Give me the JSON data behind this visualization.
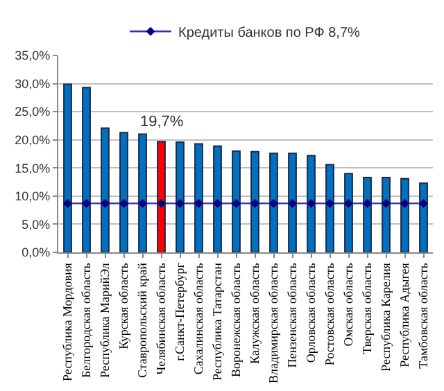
{
  "chart_data": {
    "type": "bar",
    "categories": [
      "Республика Мордовия",
      "Белгородская область",
      "Республика МарийЭл",
      "Курская область",
      "Ставропольский край",
      "Челябинская область",
      "г.Санкт-Петербург",
      "Сахалинская область",
      "Республика Татарстан",
      "Воронежская область",
      "Калужская область",
      "Владимирская область",
      "Пензенская область",
      "Орловская область",
      "Ростовская область",
      "Омская область",
      "Тверская область",
      "Республика Карелия",
      "Республика Адыгея",
      "Тамбовская область"
    ],
    "series": [
      {
        "colors": [
          "#0070c0",
          "#0070c0",
          "#0070c0",
          "#0070c0",
          "#0070c0",
          "#ff0000",
          "#0070c0",
          "#0070c0",
          "#0070c0",
          "#0070c0",
          "#0070c0",
          "#0070c0",
          "#0070c0",
          "#0070c0",
          "#0070c0",
          "#0070c0",
          "#0070c0",
          "#0070c0",
          "#0070c0",
          "#0070c0"
        ],
        "values": [
          29.9,
          29.3,
          22.1,
          21.3,
          21.0,
          19.7,
          19.6,
          19.3,
          18.9,
          18.0,
          17.9,
          17.6,
          17.6,
          17.2,
          15.6,
          14.0,
          13.3,
          13.3,
          13.1,
          12.3
        ],
        "value_labels": [
          null,
          null,
          null,
          null,
          null,
          "19,7%",
          null,
          null,
          null,
          null,
          null,
          null,
          null,
          null,
          null,
          null,
          null,
          null,
          null,
          null
        ]
      },
      {
        "type": "line",
        "name": "Кредиты банков по РФ 8,7%",
        "color": "#3333aa",
        "marker": "diamond",
        "values": [
          8.7,
          8.7,
          8.7,
          8.7,
          8.7,
          8.7,
          8.7,
          8.7,
          8.7,
          8.7,
          8.7,
          8.7,
          8.7,
          8.7,
          8.7,
          8.7,
          8.7,
          8.7,
          8.7,
          8.7
        ]
      }
    ],
    "ylim": [
      0,
      35
    ],
    "yticks": [
      {
        "value": 0,
        "label": "0,0%"
      },
      {
        "value": 5,
        "label": "5,0%"
      },
      {
        "value": 10,
        "label": "10,0%"
      },
      {
        "value": 15,
        "label": "15,0%"
      },
      {
        "value": 20,
        "label": "20,0%"
      },
      {
        "value": 25,
        "label": "25,0%"
      },
      {
        "value": 30,
        "label": "30,0%"
      },
      {
        "value": 35,
        "label": "35,0%"
      }
    ],
    "grid": "y",
    "legend": "top"
  }
}
